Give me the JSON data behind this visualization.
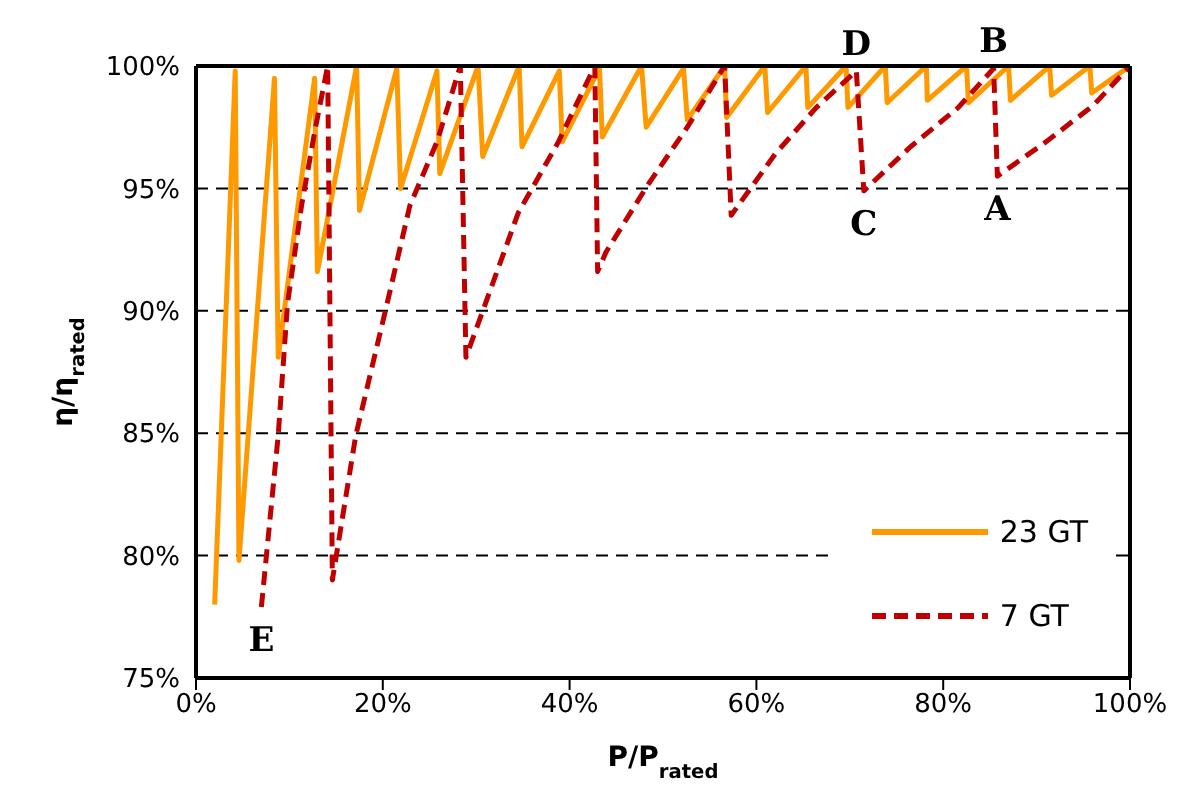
{
  "chart_data": {
    "type": "line",
    "xlabel": "P/P$_{rated}$",
    "ylabel": "η/η$_{rated}$",
    "xlim": [
      0,
      100
    ],
    "ylim": [
      75,
      100
    ],
    "xticks": [
      {
        "value": 0,
        "label": "0%"
      },
      {
        "value": 20,
        "label": "20%"
      },
      {
        "value": 40,
        "label": "40%"
      },
      {
        "value": 60,
        "label": "60%"
      },
      {
        "value": 80,
        "label": "80%"
      },
      {
        "value": 100,
        "label": "100%"
      }
    ],
    "yticks": [
      {
        "value": 75,
        "label": "75%"
      },
      {
        "value": 80,
        "label": "80%"
      },
      {
        "value": 85,
        "label": "85%"
      },
      {
        "value": 90,
        "label": "90%"
      },
      {
        "value": 95,
        "label": "95%"
      },
      {
        "value": 100,
        "label": "100%"
      }
    ],
    "grid": "y",
    "legend": "bottom right",
    "marker": "none",
    "series": [
      {
        "name": "23 GT",
        "color": "#ff9900",
        "line_style": "solid",
        "x": [
          2.0,
          4.2,
          4.6,
          8.4,
          8.8,
          12.7,
          13.0,
          17.2,
          17.5,
          21.5,
          21.9,
          25.8,
          26.1,
          30.2,
          30.7,
          34.6,
          34.9,
          38.9,
          39.2,
          43.2,
          43.5,
          47.7,
          48.2,
          52.2,
          52.6,
          56.6,
          56.8,
          60.9,
          61.2,
          65.3,
          65.5,
          69.6,
          69.8,
          73.8,
          74.0,
          78.2,
          78.3,
          82.5,
          82.7,
          87.0,
          87.2,
          91.4,
          91.6,
          95.7,
          95.9,
          100
        ],
        "values": [
          78.0,
          99.8,
          79.8,
          99.5,
          88.1,
          99.5,
          91.6,
          100,
          94.1,
          99.9,
          95.0,
          99.8,
          95.6,
          100,
          96.3,
          100,
          96.7,
          99.8,
          96.9,
          99.9,
          97.1,
          100,
          97.5,
          99.9,
          97.8,
          100,
          97.9,
          100,
          98.1,
          100,
          98.3,
          100,
          98.3,
          100,
          98.5,
          100,
          98.6,
          100,
          98.5,
          100,
          98.6,
          100,
          98.8,
          100,
          98.9,
          100
        ]
      },
      {
        "name": "7 GT",
        "color": "#c00000",
        "line_style": "dashed",
        "x": [
          7.0,
          8.8,
          9.8,
          11.3,
          12.8,
          14.1,
          14.6,
          17.1,
          20.4,
          22.9,
          25.8,
          28.3,
          28.9,
          30.9,
          34.5,
          38.8,
          42.7,
          43.0,
          43.9,
          48.3,
          52.6,
          56.6,
          57.3,
          62.0,
          66.4,
          70.7,
          71.5,
          76.5,
          81.6,
          85.4,
          85.8,
          91.0,
          96.1,
          100
        ],
        "values": [
          77.9,
          84.9,
          90.3,
          94.3,
          97.5,
          100,
          79.0,
          84.9,
          90.2,
          94.3,
          96.9,
          100,
          88.1,
          90.2,
          94.0,
          96.9,
          100,
          91.6,
          92.4,
          95.1,
          97.5,
          100,
          93.9,
          96.4,
          98.3,
          99.8,
          94.9,
          96.7,
          98.3,
          99.9,
          95.5,
          96.9,
          98.4,
          100
        ]
      }
    ],
    "annotations": [
      {
        "text": "E",
        "x": 7.0,
        "y": 77.9
      },
      {
        "text": "D",
        "x": 70.7,
        "y": 99.8
      },
      {
        "text": "C",
        "x": 71.5,
        "y": 94.9
      },
      {
        "text": "B",
        "x": 85.4,
        "y": 99.9
      },
      {
        "text": "A",
        "x": 85.8,
        "y": 95.5
      }
    ]
  }
}
